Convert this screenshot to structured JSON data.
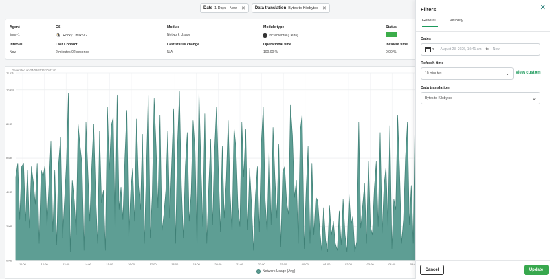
{
  "chips": [
    {
      "label": "Date",
      "value": "1 Days - Now"
    },
    {
      "label": "Data translation",
      "value": "Bytes to Kilobytes"
    }
  ],
  "info": {
    "agent": {
      "label": "Agent",
      "value": "linux-1"
    },
    "os": {
      "label": "OS",
      "value": "Rocky Linux 9.2",
      "icon": "linux-icon"
    },
    "module": {
      "label": "Module",
      "value": "Network Usage"
    },
    "module_type": {
      "label": "Module type",
      "value": "Incremental (Delta)",
      "icon": "database-icon"
    },
    "status": {
      "label": "Status",
      "color": "#3cad4a"
    },
    "interval": {
      "label": "Interval",
      "value": "Now"
    },
    "last_contact": {
      "label": "Last Contact",
      "value": "2 minutes 02 seconds"
    },
    "last_status_change": {
      "label": "Last status change",
      "value": "N/A"
    },
    "operational_time": {
      "label": "Operational time",
      "value": "100.00 %"
    },
    "incident_time": {
      "label": "Incident time",
      "value": "0.00 %"
    }
  },
  "generated_text": "Generated on 24/08/2026 10:41:07",
  "chart_data": {
    "type": "area",
    "series": [
      {
        "name": "Network Usage (Avg)",
        "color": "#5e9e94",
        "stroke": "#3e7f75",
        "values": [
          4.9,
          5.7,
          2.4,
          5.5,
          5.7,
          2.3,
          5.3,
          1.9,
          5.5,
          4.6,
          3.3,
          5.7,
          1.0,
          5.3,
          4.9,
          5.6,
          2.0,
          4.3,
          7.0,
          1.7,
          5.3,
          0.9,
          5.7,
          7.2,
          1.3,
          3.5,
          5.7,
          9.8,
          0.5,
          4.7,
          3.5,
          1.5,
          8.0,
          6.7,
          5.7,
          0.6,
          8.1,
          5.2,
          2.3,
          5.5,
          8.0,
          3.7,
          1.0,
          7.6,
          3.4,
          4.1,
          0.6,
          9.0,
          5.3,
          7.9,
          8.4,
          1.6,
          9.7,
          3.0,
          4.3,
          2.4,
          6.0,
          8.8,
          1.3,
          4.1,
          5.4,
          2.3,
          8.3,
          4.4,
          3.0,
          7.4,
          1.0,
          5.2,
          9.7,
          1.3,
          3.8,
          9.5,
          6.7,
          3.1,
          8.5,
          1.7,
          2.7,
          4.1,
          7.6,
          2.5,
          5.7,
          8.9,
          1.0,
          6.8,
          9.9,
          4.4,
          1.3,
          5.5,
          7.5,
          2.3,
          3.9,
          8.2,
          6.4,
          0.7,
          10.0,
          5.7,
          2.0,
          8.6,
          1.0,
          4.3,
          7.1,
          2.1,
          6.4,
          9.0,
          5.2,
          1.7,
          6.7,
          2.5,
          4.7,
          8.2,
          3.9,
          1.6,
          7.8,
          6.6,
          3.1,
          2.0,
          8.1,
          4.9,
          7.7,
          1.8,
          5.4,
          3.3,
          0.6,
          3.8,
          5.5,
          1.7,
          6.9,
          9.0,
          3.5,
          1.6,
          6.5,
          2.1,
          7.8,
          4.8,
          2.5,
          6.8,
          0.8,
          5.2,
          5.5,
          3.4,
          2.7,
          9.1,
          7.3,
          3.7,
          4.7,
          1.0,
          7.6,
          8.6,
          0.7,
          4.1,
          6.7,
          1.0,
          5.7,
          1.5,
          3.7,
          3.5,
          1.8,
          0.6,
          3.1,
          1.2,
          0.5,
          3.2,
          1.5,
          2.3,
          1.0,
          0.6,
          2.9,
          0.9,
          3.6,
          1.5,
          0.5,
          3.9,
          2.1,
          2.6,
          0.5,
          1.1,
          8.1,
          1.9,
          3.2,
          4.5,
          1.0,
          5.8,
          2.0,
          1.5,
          4.2,
          5.8,
          2.0,
          7.5,
          1.6,
          4.4,
          5.5,
          2.0,
          7.9,
          0.7,
          3.6,
          3.0,
          8.5,
          5.2,
          1.0,
          2.4,
          6.0,
          8.1,
          2.1,
          4.4,
          1.0,
          9.3
        ]
      }
    ],
    "x_ticks": [
      "11:00",
      "12:00",
      "13:00",
      "14:00",
      "15:00",
      "16:00",
      "17:00",
      "18:00",
      "19:00",
      "20:00",
      "21:00",
      "22:00",
      "23:00",
      "00:00",
      "01:00",
      "02:00",
      "03:00",
      "04:00",
      "05:00"
    ],
    "y_ticks": [
      "0 KB",
      "2 KB",
      "4 KB",
      "6 KB",
      "8 KB",
      "10 KB",
      "11 KB"
    ],
    "y_tick_values": [
      0,
      2,
      4,
      6,
      8,
      10,
      11
    ],
    "ylim": [
      0,
      11
    ],
    "grid": true,
    "legend": "bottom-center"
  },
  "filters": {
    "title": "Filters",
    "tabs": [
      "General",
      "Visibility"
    ],
    "tab_more": "–",
    "dates_label": "Dates",
    "date_from": "August 23, 2026, 10:41 am",
    "date_to_word": "to",
    "date_to": "Now",
    "refresh_label": "Refresh time",
    "refresh_value": "10 minutes",
    "view_custom": "View custom",
    "translation_label": "Data translation",
    "translation_value": "Bytes to Kilobytes",
    "cancel": "Cancel",
    "update": "Update"
  }
}
